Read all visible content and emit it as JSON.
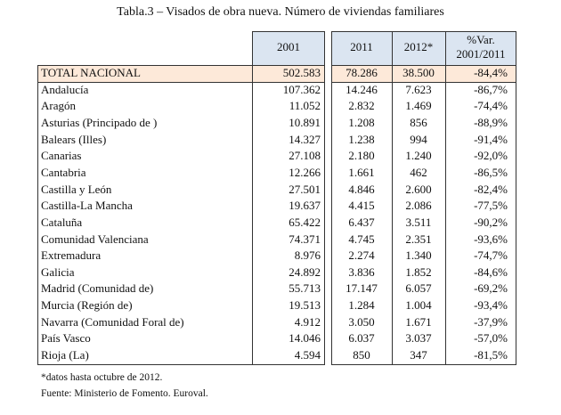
{
  "title": "Tabla.3 – Visados de obra nueva. Número de viviendas familiares",
  "table": {
    "header": [
      "2001",
      "2011",
      "2012*",
      "%Var. 2001/2011"
    ],
    "rows": [
      [
        "TOTAL NACIONAL",
        "502.583",
        "78.286",
        "38.500",
        "-84,4%"
      ],
      [
        "Andalucía",
        "107.362",
        "14.246",
        "7.623",
        "-86,7%"
      ],
      [
        "Aragón",
        "11.052",
        "2.832",
        "1.469",
        "-74,4%"
      ],
      [
        "Asturias (Principado de )",
        "10.891",
        "1.208",
        "856",
        "-88,9%"
      ],
      [
        "Balears (Illes)",
        "14.327",
        "1.238",
        "994",
        "-91,4%"
      ],
      [
        "Canarias",
        "27.108",
        "2.180",
        "1.240",
        "-92,0%"
      ],
      [
        "Cantabria",
        "12.266",
        "1.661",
        "462",
        "-86,5%"
      ],
      [
        "Castilla y León",
        "27.501",
        "4.846",
        "2.600",
        "-82,4%"
      ],
      [
        "Castilla-La Mancha",
        "19.637",
        "4.415",
        "2.086",
        "-77,5%"
      ],
      [
        "Cataluña",
        "65.422",
        "6.437",
        "3.511",
        "-90,2%"
      ],
      [
        "Comunidad Valenciana",
        "74.371",
        "4.745",
        "2.351",
        "-93,6%"
      ],
      [
        "Extremadura",
        "8.976",
        "2.274",
        "1.340",
        "-74,7%"
      ],
      [
        "Galicia",
        "24.892",
        "3.836",
        "1.852",
        "-84,6%"
      ],
      [
        "Madrid (Comunidad de)",
        "55.713",
        "17.147",
        "6.057",
        "-69,2%"
      ],
      [
        "Murcia (Región de)",
        "19.513",
        "1.284",
        "1.004",
        "-93,4%"
      ],
      [
        "Navarra (Comunidad Foral de)",
        "4.912",
        "3.050",
        "1.671",
        "-37,9%"
      ],
      [
        "País Vasco",
        "14.046",
        "6.037",
        "3.037",
        "-57,0%"
      ],
      [
        "Rioja (La)",
        "4.594",
        "850",
        "347",
        "-81,5%"
      ]
    ]
  },
  "footnotes": [
    "*datos hasta octubre de 2012.",
    "Fuente: Ministerio de Fomento. Euroval."
  ]
}
